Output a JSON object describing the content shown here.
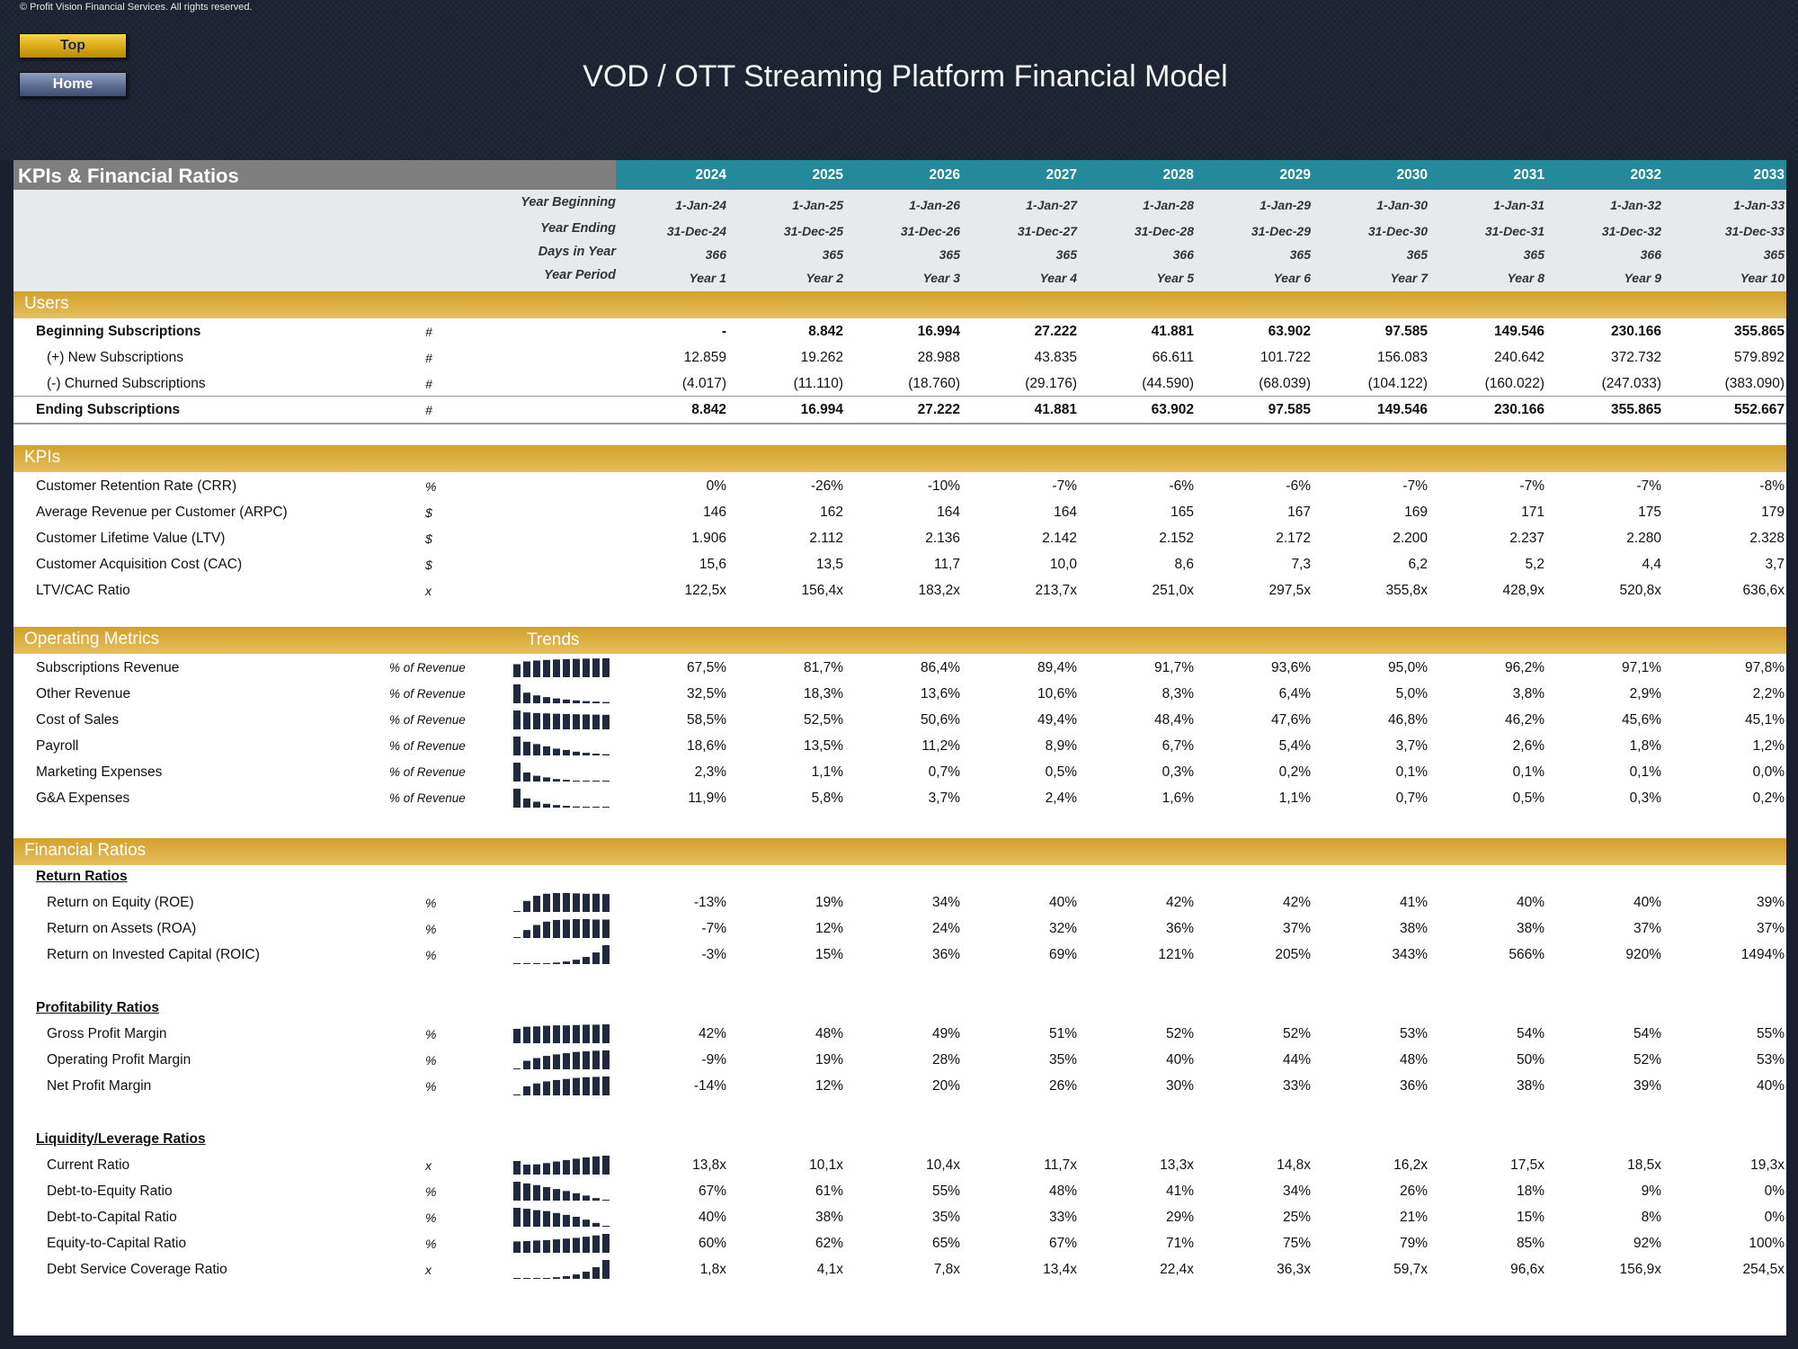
{
  "copyright": "© Profit Vision Financial Services. All rights reserved.",
  "buttons": {
    "top": "Top",
    "home": "Home"
  },
  "title": "VOD / OTT Streaming Platform Financial Model",
  "header": {
    "title": "KPIs & Financial Ratios",
    "years": [
      "2024",
      "2025",
      "2026",
      "2027",
      "2028",
      "2029",
      "2030",
      "2031",
      "2032",
      "2033"
    ]
  },
  "periods": [
    {
      "label": "Year Beginning",
      "values": [
        "1-Jan-24",
        "1-Jan-25",
        "1-Jan-26",
        "1-Jan-27",
        "1-Jan-28",
        "1-Jan-29",
        "1-Jan-30",
        "1-Jan-31",
        "1-Jan-32",
        "1-Jan-33"
      ]
    },
    {
      "label": "Year Ending",
      "values": [
        "31-Dec-24",
        "31-Dec-25",
        "31-Dec-26",
        "31-Dec-27",
        "31-Dec-28",
        "31-Dec-29",
        "31-Dec-30",
        "31-Dec-31",
        "31-Dec-32",
        "31-Dec-33"
      ]
    },
    {
      "label": "Days in Year",
      "values": [
        "366",
        "365",
        "365",
        "365",
        "366",
        "365",
        "365",
        "365",
        "366",
        "365"
      ]
    },
    {
      "label": "Year Period",
      "values": [
        "Year 1",
        "Year 2",
        "Year 3",
        "Year 4",
        "Year 5",
        "Year 6",
        "Year 7",
        "Year 8",
        "Year 9",
        "Year 10"
      ]
    }
  ],
  "sections": {
    "users": "Users",
    "kpis": "KPIs",
    "operating": "Operating Metrics",
    "trends": "Trends",
    "financial": "Financial Ratios"
  },
  "users": [
    {
      "label": "Beginning Subscriptions",
      "unit": "#",
      "values": [
        "-",
        "8.842",
        "16.994",
        "27.222",
        "41.881",
        "63.902",
        "97.585",
        "149.546",
        "230.166",
        "355.865"
      ]
    },
    {
      "label": "(+) New Subscriptions",
      "unit": "#",
      "values": [
        "12.859",
        "19.262",
        "28.988",
        "43.835",
        "66.611",
        "101.722",
        "156.083",
        "240.642",
        "372.732",
        "579.892"
      ]
    },
    {
      "label": "(-) Churned Subscriptions",
      "unit": "#",
      "values": [
        "(4.017)",
        "(11.110)",
        "(18.760)",
        "(29.176)",
        "(44.590)",
        "(68.039)",
        "(104.122)",
        "(160.022)",
        "(247.033)",
        "(383.090)"
      ]
    },
    {
      "label": "Ending Subscriptions",
      "unit": "#",
      "values": [
        "8.842",
        "16.994",
        "27.222",
        "41.881",
        "63.902",
        "97.585",
        "149.546",
        "230.166",
        "355.865",
        "552.667"
      ]
    }
  ],
  "kpis": [
    {
      "label": "Customer Retention Rate (CRR)",
      "unit": "%",
      "values": [
        "0%",
        "-26%",
        "-10%",
        "-7%",
        "-6%",
        "-6%",
        "-7%",
        "-7%",
        "-7%",
        "-8%"
      ]
    },
    {
      "label": "Average Revenue per Customer (ARPC)",
      "unit": "$",
      "values": [
        "146",
        "162",
        "164",
        "164",
        "165",
        "167",
        "169",
        "171",
        "175",
        "179"
      ]
    },
    {
      "label": "Customer Lifetime Value (LTV)",
      "unit": "$",
      "values": [
        "1.906",
        "2.112",
        "2.136",
        "2.142",
        "2.152",
        "2.172",
        "2.200",
        "2.237",
        "2.280",
        "2.328"
      ]
    },
    {
      "label": "Customer Acquisition Cost (CAC)",
      "unit": "$",
      "values": [
        "15,6",
        "13,5",
        "11,7",
        "10,0",
        "8,6",
        "7,3",
        "6,2",
        "5,2",
        "4,4",
        "3,7"
      ]
    },
    {
      "label": "LTV/CAC Ratio",
      "unit": "x",
      "values": [
        "122,5x",
        "156,4x",
        "183,2x",
        "213,7x",
        "251,0x",
        "297,5x",
        "355,8x",
        "428,9x",
        "520,8x",
        "636,6x"
      ]
    }
  ],
  "operating": [
    {
      "label": "Subscriptions Revenue",
      "unit": "% of Revenue",
      "trend": [
        67.5,
        81.7,
        86.4,
        89.4,
        91.7,
        93.6,
        95.0,
        96.2,
        97.1,
        97.8
      ],
      "values": [
        "67,5%",
        "81,7%",
        "86,4%",
        "89,4%",
        "91,7%",
        "93,6%",
        "95,0%",
        "96,2%",
        "97,1%",
        "97,8%"
      ]
    },
    {
      "label": "Other Revenue",
      "unit": "% of Revenue",
      "trend": [
        32.5,
        18.3,
        13.6,
        10.6,
        8.3,
        6.4,
        5.0,
        3.8,
        2.9,
        2.2
      ],
      "values": [
        "32,5%",
        "18,3%",
        "13,6%",
        "10,6%",
        "8,3%",
        "6,4%",
        "5,0%",
        "3,8%",
        "2,9%",
        "2,2%"
      ]
    },
    {
      "label": "Cost of Sales",
      "unit": "% of Revenue",
      "trend": [
        58.5,
        52.5,
        50.6,
        49.4,
        48.4,
        47.6,
        46.8,
        46.2,
        45.6,
        45.1
      ],
      "values": [
        "58,5%",
        "52,5%",
        "50,6%",
        "49,4%",
        "48,4%",
        "47,6%",
        "46,8%",
        "46,2%",
        "45,6%",
        "45,1%"
      ]
    },
    {
      "label": "Payroll",
      "unit": "% of Revenue",
      "trend": [
        18.6,
        13.5,
        11.2,
        8.9,
        6.7,
        5.4,
        3.7,
        2.6,
        1.8,
        1.2
      ],
      "values": [
        "18,6%",
        "13,5%",
        "11,2%",
        "8,9%",
        "6,7%",
        "5,4%",
        "3,7%",
        "2,6%",
        "1,8%",
        "1,2%"
      ]
    },
    {
      "label": "Marketing Expenses",
      "unit": "% of Revenue",
      "trend": [
        2.3,
        1.1,
        0.7,
        0.5,
        0.3,
        0.2,
        0.1,
        0.1,
        0.1,
        0.0
      ],
      "values": [
        "2,3%",
        "1,1%",
        "0,7%",
        "0,5%",
        "0,3%",
        "0,2%",
        "0,1%",
        "0,1%",
        "0,1%",
        "0,0%"
      ]
    },
    {
      "label": "G&A Expenses",
      "unit": "% of Revenue",
      "trend": [
        11.9,
        5.8,
        3.7,
        2.4,
        1.6,
        1.1,
        0.7,
        0.5,
        0.3,
        0.2
      ],
      "values": [
        "11,9%",
        "5,8%",
        "3,7%",
        "2,4%",
        "1,6%",
        "1,1%",
        "0,7%",
        "0,5%",
        "0,3%",
        "0,2%"
      ]
    }
  ],
  "return_ratios": {
    "heading": "Return Ratios",
    "rows": [
      {
        "label": "Return on Equity (ROE)",
        "unit": "%",
        "trend": [
          -13,
          19,
          34,
          40,
          42,
          42,
          41,
          40,
          40,
          39
        ],
        "values": [
          "-13%",
          "19%",
          "34%",
          "40%",
          "42%",
          "42%",
          "41%",
          "40%",
          "40%",
          "39%"
        ]
      },
      {
        "label": "Return on Assets (ROA)",
        "unit": "%",
        "trend": [
          -7,
          12,
          24,
          32,
          36,
          37,
          38,
          38,
          37,
          37
        ],
        "values": [
          "-7%",
          "12%",
          "24%",
          "32%",
          "36%",
          "37%",
          "38%",
          "38%",
          "37%",
          "37%"
        ]
      },
      {
        "label": "Return on Invested Capital (ROIC)",
        "unit": "%",
        "trend": [
          -3,
          15,
          36,
          69,
          121,
          205,
          343,
          566,
          920,
          1494
        ],
        "values": [
          "-3%",
          "15%",
          "36%",
          "69%",
          "121%",
          "205%",
          "343%",
          "566%",
          "920%",
          "1494%"
        ]
      }
    ]
  },
  "profitability_ratios": {
    "heading": "Profitability Ratios",
    "rows": [
      {
        "label": "Gross Profit Margin",
        "unit": "%",
        "trend": [
          42,
          48,
          49,
          51,
          52,
          52,
          53,
          54,
          54,
          55
        ],
        "values": [
          "42%",
          "48%",
          "49%",
          "51%",
          "52%",
          "52%",
          "53%",
          "54%",
          "54%",
          "55%"
        ]
      },
      {
        "label": "Operating Profit Margin",
        "unit": "%",
        "trend": [
          -9,
          19,
          28,
          35,
          40,
          44,
          48,
          50,
          52,
          53
        ],
        "values": [
          "-9%",
          "19%",
          "28%",
          "35%",
          "40%",
          "44%",
          "48%",
          "50%",
          "52%",
          "53%"
        ]
      },
      {
        "label": "Net Profit Margin",
        "unit": "%",
        "trend": [
          -14,
          12,
          20,
          26,
          30,
          33,
          36,
          38,
          39,
          40
        ],
        "values": [
          "-14%",
          "12%",
          "20%",
          "26%",
          "30%",
          "33%",
          "36%",
          "38%",
          "39%",
          "40%"
        ]
      }
    ]
  },
  "liquidity_ratios": {
    "heading": "Liquidity/Leverage Ratios",
    "rows": [
      {
        "label": "Current Ratio",
        "unit": "x",
        "trend": [
          13.8,
          10.1,
          10.4,
          11.7,
          13.3,
          14.8,
          16.2,
          17.5,
          18.5,
          19.3
        ],
        "values": [
          "13,8x",
          "10,1x",
          "10,4x",
          "11,7x",
          "13,3x",
          "14,8x",
          "16,2x",
          "17,5x",
          "18,5x",
          "19,3x"
        ]
      },
      {
        "label": "Debt-to-Equity Ratio",
        "unit": "%",
        "trend": [
          67,
          61,
          55,
          48,
          41,
          34,
          26,
          18,
          9,
          0
        ],
        "values": [
          "67%",
          "61%",
          "55%",
          "48%",
          "41%",
          "34%",
          "26%",
          "18%",
          "9%",
          "0%"
        ]
      },
      {
        "label": "Debt-to-Capital Ratio",
        "unit": "%",
        "trend": [
          40,
          38,
          35,
          33,
          29,
          25,
          21,
          15,
          8,
          0
        ],
        "values": [
          "40%",
          "38%",
          "35%",
          "33%",
          "29%",
          "25%",
          "21%",
          "15%",
          "8%",
          "0%"
        ]
      },
      {
        "label": "Equity-to-Capital Ratio",
        "unit": "%",
        "trend": [
          60,
          62,
          65,
          67,
          71,
          75,
          79,
          85,
          92,
          100
        ],
        "values": [
          "60%",
          "62%",
          "65%",
          "67%",
          "71%",
          "75%",
          "79%",
          "85%",
          "92%",
          "100%"
        ]
      },
      {
        "label": "Debt Service Coverage Ratio",
        "unit": "x",
        "trend": [
          1.8,
          4.1,
          7.8,
          13.4,
          22.4,
          36.3,
          59.7,
          96.6,
          156.9,
          254.5
        ],
        "values": [
          "1,8x",
          "4,1x",
          "7,8x",
          "13,4x",
          "22,4x",
          "36,3x",
          "59,7x",
          "96,6x",
          "156,9x",
          "254,5x"
        ]
      }
    ]
  }
}
